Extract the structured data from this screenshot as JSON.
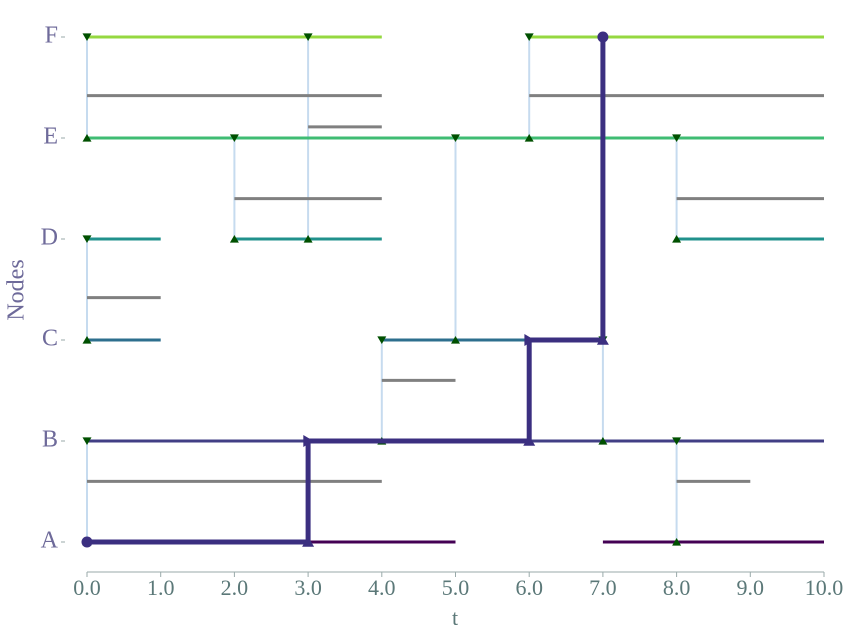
{
  "chart_data": {
    "type": "temporal-network",
    "xlabel": "t",
    "ylabel": "Nodes",
    "xlim": [
      0,
      10
    ],
    "xticks": [
      {
        "value": 0,
        "label": "0.0"
      },
      {
        "value": 1,
        "label": "1.0"
      },
      {
        "value": 2,
        "label": "2.0"
      },
      {
        "value": 3,
        "label": "3.0"
      },
      {
        "value": 4,
        "label": "4.0"
      },
      {
        "value": 5,
        "label": "5.0"
      },
      {
        "value": 6,
        "label": "6.0"
      },
      {
        "value": 7,
        "label": "7.0"
      },
      {
        "value": 8,
        "label": "8.0"
      },
      {
        "value": 9,
        "label": "9.0"
      },
      {
        "value": 10,
        "label": "10.0"
      }
    ],
    "ylim": [
      -0.25,
      5.2
    ],
    "yticks": [
      {
        "value": 0,
        "label": "A"
      },
      {
        "value": 1,
        "label": "B"
      },
      {
        "value": 2,
        "label": "C"
      },
      {
        "value": 3,
        "label": "D"
      },
      {
        "value": 4,
        "label": "E"
      },
      {
        "value": 5,
        "label": "F"
      }
    ],
    "timelines": [
      {
        "y": 0,
        "color": "#440154",
        "intervals": [
          [
            0,
            5
          ],
          [
            7,
            10
          ]
        ]
      },
      {
        "y": 1,
        "color": "#423f85",
        "intervals": [
          [
            0,
            10
          ]
        ]
      },
      {
        "y": 2,
        "color": "#2d6f8e",
        "intervals": [
          [
            0,
            1
          ],
          [
            4,
            7
          ]
        ]
      },
      {
        "y": 3,
        "color": "#21918c",
        "intervals": [
          [
            0,
            1
          ],
          [
            2,
            4
          ],
          [
            8,
            10
          ]
        ]
      },
      {
        "y": 4,
        "color": "#3fbc73",
        "intervals": [
          [
            0,
            10
          ]
        ]
      },
      {
        "y": 5,
        "color": "#95d840",
        "intervals": [
          [
            0,
            4
          ],
          [
            6,
            10
          ]
        ]
      }
    ],
    "link_color": "#808080",
    "links": [
      {
        "y": 0.6,
        "intervals": [
          [
            0,
            4
          ],
          [
            8,
            9
          ]
        ]
      },
      {
        "y": 1.6,
        "intervals": [
          [
            4,
            5
          ]
        ]
      },
      {
        "y": 2.42,
        "intervals": [
          [
            0,
            1
          ]
        ]
      },
      {
        "y": 3.4,
        "intervals": [
          [
            2,
            4
          ],
          [
            8,
            10
          ]
        ]
      },
      {
        "y": 4.11,
        "intervals": [
          [
            3,
            4
          ]
        ]
      },
      {
        "y": 4.42,
        "intervals": [
          [
            0,
            4
          ],
          [
            6,
            10
          ]
        ]
      }
    ],
    "contact_color": "#c6dbef",
    "marker_color": "#005000",
    "contacts": [
      {
        "t": 0,
        "from": 5,
        "to": 4
      },
      {
        "t": 0,
        "from": 3,
        "to": 2
      },
      {
        "t": 0,
        "from": 1,
        "to": 0
      },
      {
        "t": 2,
        "from": 4,
        "to": 3
      },
      {
        "t": 3,
        "from": 5,
        "to": 3
      },
      {
        "t": 4,
        "from": 2,
        "to": 1
      },
      {
        "t": 5,
        "from": 4,
        "to": 2
      },
      {
        "t": 6,
        "from": 5,
        "to": 4
      },
      {
        "t": 7,
        "from": 2,
        "to": 1
      },
      {
        "t": 8,
        "from": 4,
        "to": 3
      },
      {
        "t": 8,
        "from": 1,
        "to": 0
      }
    ],
    "path": {
      "color": "#3b2f80",
      "x": [
        0,
        3,
        3,
        6,
        6,
        7,
        7
      ],
      "y": [
        0,
        0,
        1,
        1,
        2,
        2,
        5
      ]
    }
  }
}
